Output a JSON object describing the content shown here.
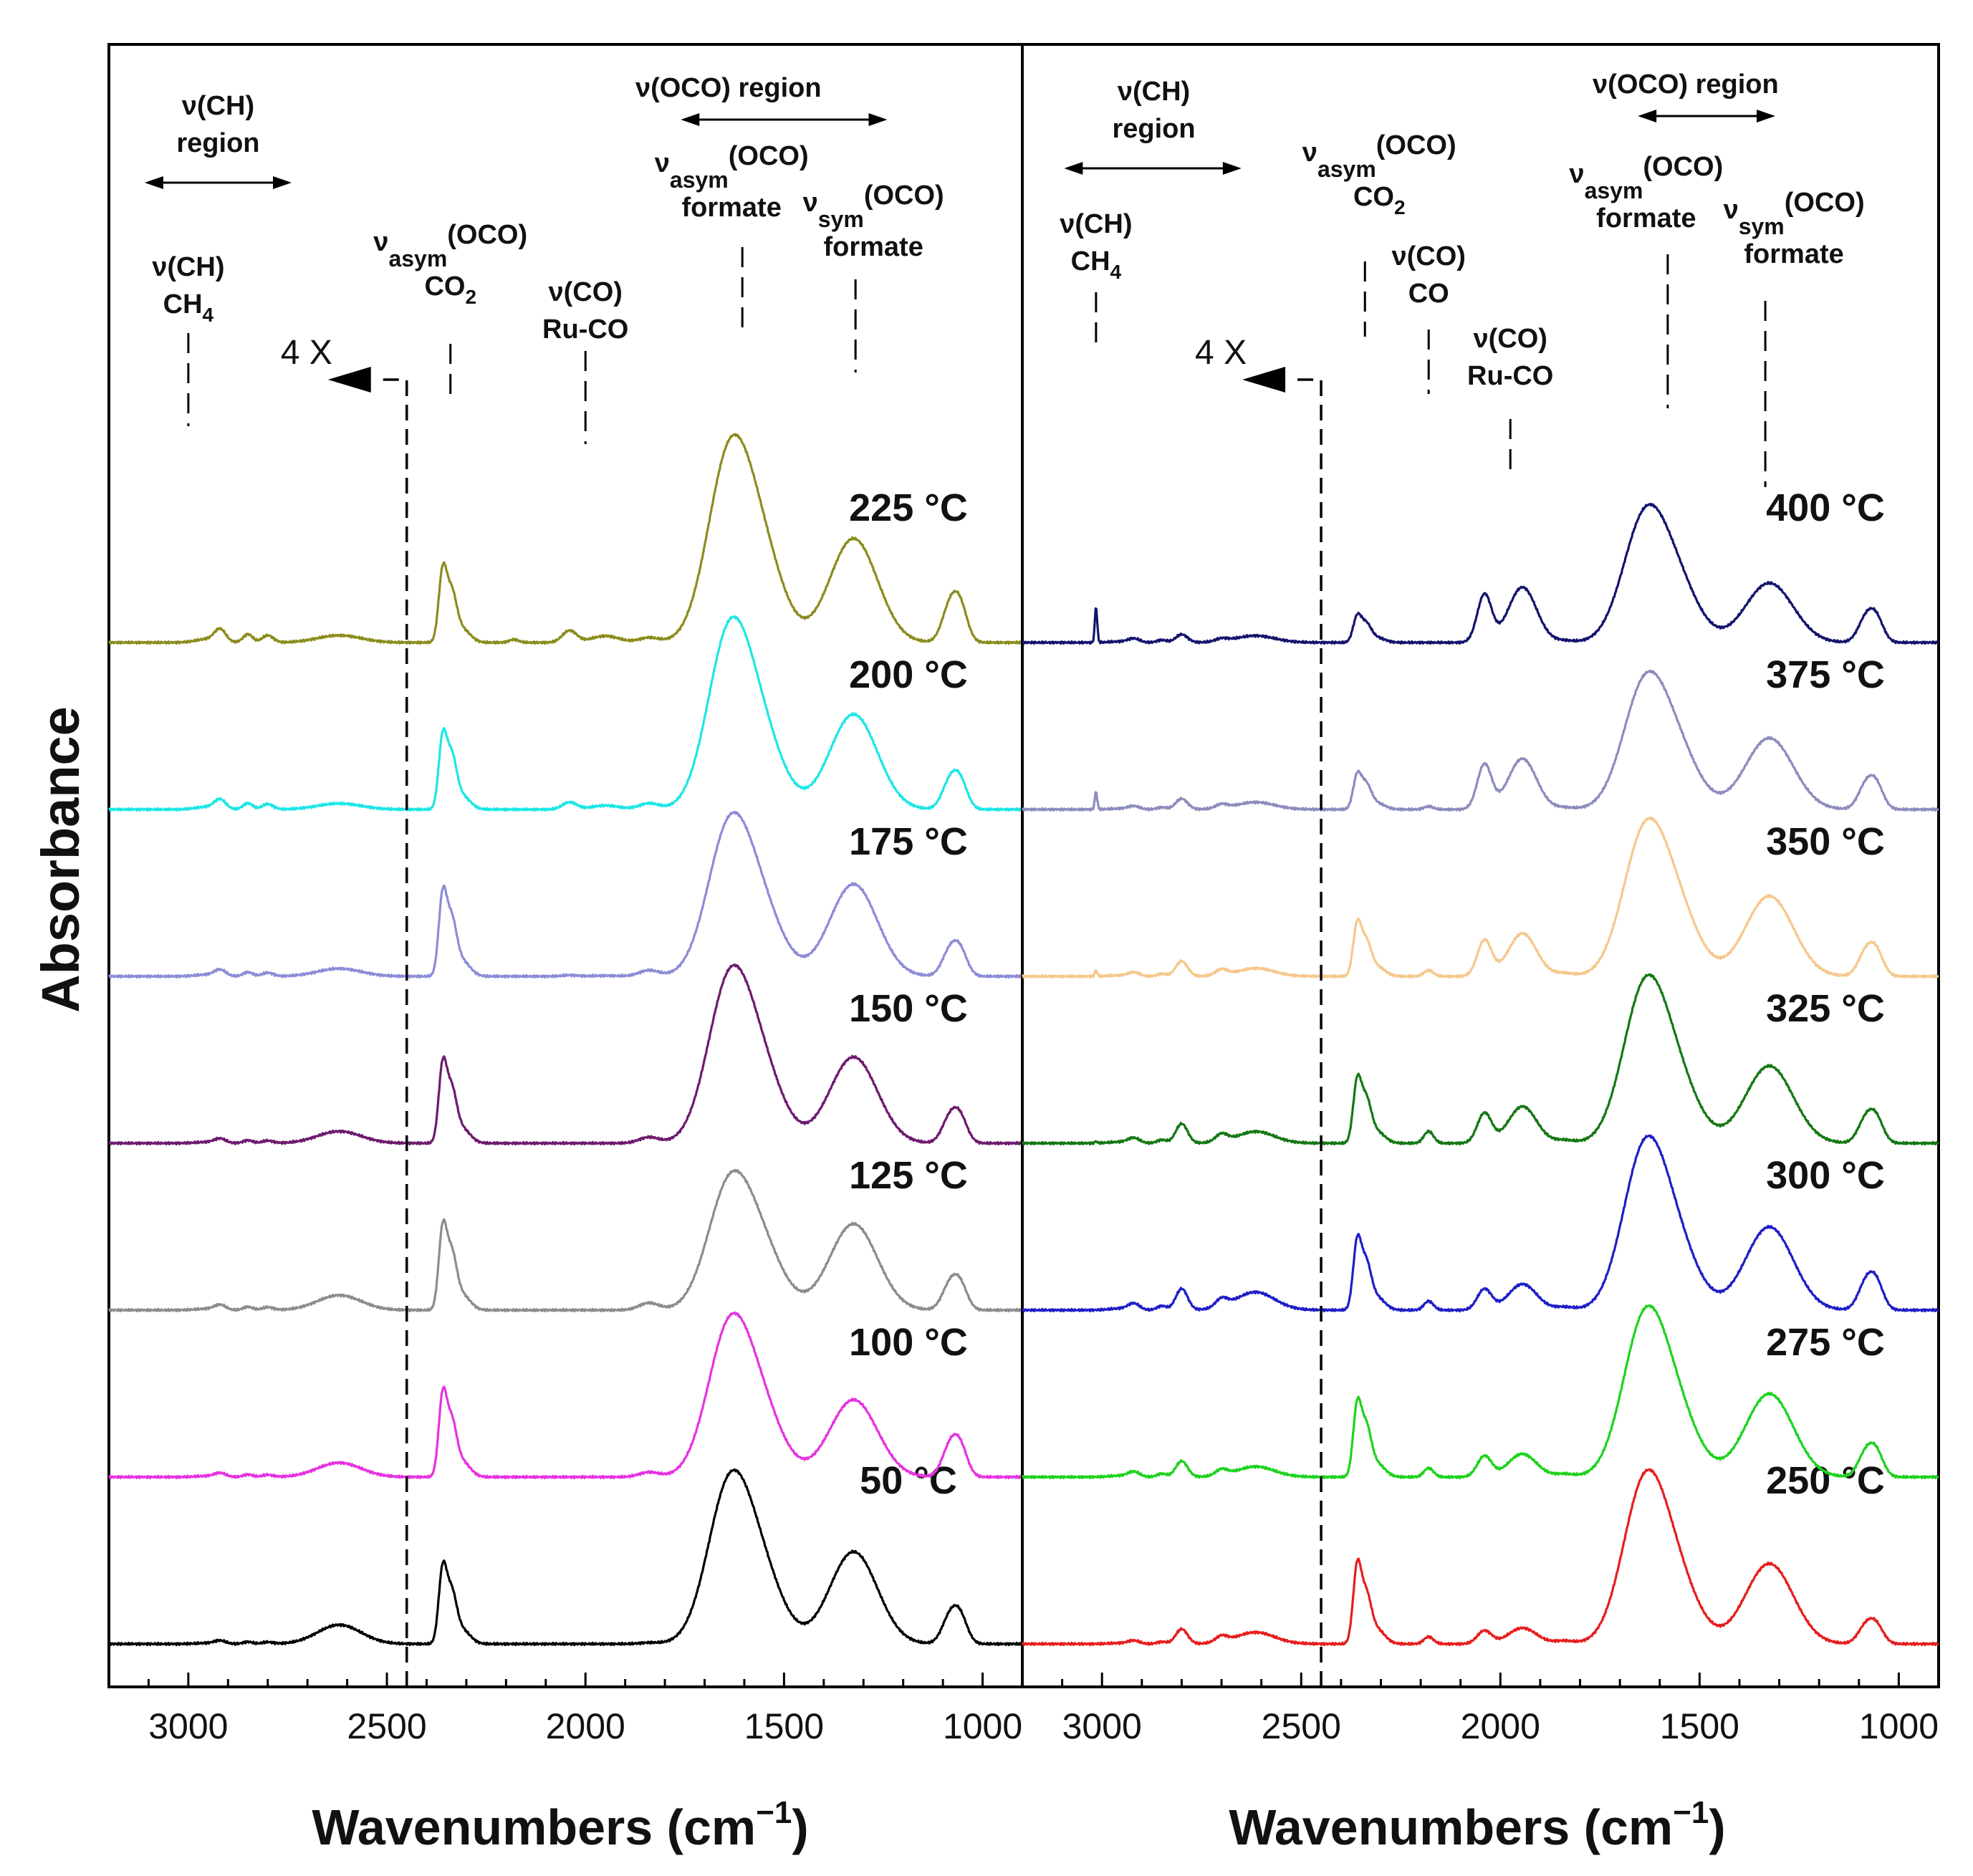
{
  "figure": {
    "ylabel": "Absorbance",
    "xlabel_text": "Wavenumbers (cm",
    "xlabel_sup": "−1",
    "xlabel_close": ")",
    "multiplier_text": "4 X"
  },
  "colors": {
    "50": "#000000",
    "100": "#e632e0",
    "125": "#8c8c8c",
    "150": "#6e1a6e",
    "175": "#8c8cd7",
    "200": "#1ce6e6",
    "225": "#8c8c1e",
    "250": "#e61e1e",
    "275": "#1ed21e",
    "300": "#1e1ec8",
    "325": "#147814",
    "350": "#f5c88c",
    "375": "#8c8cbe",
    "400": "#14146e"
  },
  "chart_data": [
    {
      "type": "line",
      "panel": "left",
      "xlabel": "Wavenumbers (cm−1)",
      "ylabel": "Absorbance",
      "xlim": [
        3200,
        900
      ],
      "xticks": [
        3000,
        2500,
        2000,
        1500,
        1000
      ],
      "xtick_labels": [
        "3000",
        "2500",
        "2000",
        "1500",
        "1000"
      ],
      "x_inverted": true,
      "scale_break_x": 2450,
      "scale_note": "4 X",
      "series": [
        {
          "name": "50",
          "label": "50 °C",
          "offset": 0,
          "peaks": {
            "ch4": 0,
            "ch": 0.05,
            "b2620": 0.32,
            "co2": 1.15,
            "co2b": 0.82,
            "rucoco": 0,
            "ruco": 0,
            "b1840": 0.02,
            "asym": 2.55,
            "asymsh": 1.0,
            "sym": 1.55,
            "b1080": 0.45
          }
        },
        {
          "name": "100",
          "label": "100 °C",
          "offset": 1,
          "peaks": {
            "ch4": 0,
            "ch": 0.06,
            "b2620": 0.24,
            "co2": 1.25,
            "co2b": 0.88,
            "rucoco": 0,
            "ruco": 0,
            "b1840": 0.08,
            "asym": 2.4,
            "asymsh": 0.95,
            "sym": 1.3,
            "b1080": 0.5
          }
        },
        {
          "name": "125",
          "label": "125 °C",
          "offset": 2,
          "peaks": {
            "ch4": 0,
            "ch": 0.08,
            "b2620": 0.25,
            "co2": 1.25,
            "co2b": 0.9,
            "rucoco": 0,
            "ruco": 0,
            "b1840": 0.12,
            "asym": 2.0,
            "asymsh": 0.9,
            "sym": 1.45,
            "b1080": 0.42
          }
        },
        {
          "name": "150",
          "label": "150 °C",
          "offset": 3,
          "peaks": {
            "ch4": 0,
            "ch": 0.07,
            "b2620": 0.2,
            "co2": 1.2,
            "co2b": 0.85,
            "rucoco": 0,
            "ruco": 0,
            "b1840": 0.1,
            "asym": 2.6,
            "asymsh": 1.05,
            "sym": 1.45,
            "b1080": 0.42
          }
        },
        {
          "name": "175",
          "label": "175 °C",
          "offset": 4,
          "peaks": {
            "ch4": 0,
            "ch": 0.1,
            "b2620": 0.13,
            "co2": 1.25,
            "co2b": 0.9,
            "rucoco": 0,
            "ruco": 0.02,
            "b1840": 0.1,
            "asym": 2.4,
            "asymsh": 0.95,
            "sym": 1.55,
            "b1080": 0.42
          }
        },
        {
          "name": "200",
          "label": "200 °C",
          "offset": 5,
          "peaks": {
            "ch4": 0,
            "ch": 0.15,
            "b2620": 0.1,
            "co2": 1.1,
            "co2b": 0.85,
            "rucoco": 0,
            "ruco": 0.12,
            "b1840": 0.1,
            "asym": 2.85,
            "asymsh": 1.05,
            "sym": 1.6,
            "b1080": 0.46
          }
        },
        {
          "name": "225",
          "label": "225 °C",
          "offset": 6,
          "peaks": {
            "ch4": 0,
            "ch": 0.2,
            "b2620": 0.12,
            "co2": 1.1,
            "co2b": 0.8,
            "rucoco": 0.05,
            "ruco": 0.2,
            "b1840": 0.08,
            "asym": 3.0,
            "asymsh": 1.3,
            "sym": 1.75,
            "b1080": 0.6
          }
        }
      ],
      "annotations": [
        {
          "id": "ch-region",
          "text": "ν(CH)",
          "text2": "region"
        },
        {
          "id": "ch4",
          "text": "ν(CH)",
          "text2": "CH",
          "sub2": "4",
          "x": 3000
        },
        {
          "id": "co2",
          "nu_sub": "asym",
          "paren": "(OCO)",
          "text2": "CO",
          "sub2": "2",
          "x": 2340
        },
        {
          "id": "ruco",
          "text": "ν(CO)",
          "text2": "Ru-CO",
          "x": 2000
        },
        {
          "id": "oco-region",
          "text": "ν(OCO) region"
        },
        {
          "id": "asym",
          "nu_sub": "asym",
          "paren": "(OCO)",
          "text2": "formate",
          "x": 1605
        },
        {
          "id": "sym",
          "nu_sub": "sym",
          "paren": "(OCO)",
          "text2": "formate",
          "x": 1320
        }
      ]
    },
    {
      "type": "line",
      "panel": "right",
      "xlabel": "Wavenumbers (cm−1)",
      "ylabel": "Absorbance",
      "xlim": [
        3200,
        900
      ],
      "xticks": [
        3000,
        2500,
        2000,
        1500,
        1000
      ],
      "xtick_labels": [
        "3000",
        "2500",
        "2000",
        "1500",
        "1000"
      ],
      "x_inverted": true,
      "scale_break_x": 2450,
      "scale_note": "4 X",
      "series": [
        {
          "name": "250",
          "label": "250 °C",
          "offset": 0,
          "peaks": {
            "ch4": 0,
            "ch": 0.05,
            "b2620": 0.12,
            "co2": 1.2,
            "co2b": 0.78,
            "rucoco": 0.12,
            "ruco": 0.22,
            "b1840": 0.05,
            "asym": 2.6,
            "asymsh": 0.9,
            "sym": 1.35,
            "b1080": 0.3,
            "b2800": 0.22,
            "b1940": 0.15
          }
        },
        {
          "name": "275",
          "label": "275 °C",
          "offset": 1,
          "peaks": {
            "ch4": 0,
            "ch": 0.08,
            "b2620": 0.1,
            "co2": 1.1,
            "co2b": 0.8,
            "rucoco": 0.15,
            "ruco": 0.35,
            "b1840": 0.05,
            "asym": 2.55,
            "asymsh": 0.9,
            "sym": 1.4,
            "b1080": 0.4,
            "b2800": 0.22,
            "b1940": 0.2
          }
        },
        {
          "name": "300",
          "label": "300 °C",
          "offset": 2,
          "peaks": {
            "ch4": 0,
            "ch": 0.1,
            "b2620": 0.2,
            "co2": 1.05,
            "co2b": 0.75,
            "rucoco": 0.15,
            "ruco": 0.35,
            "b1840": 0.05,
            "asym": 2.6,
            "asymsh": 0.9,
            "sym": 1.4,
            "b1080": 0.45,
            "b2800": 0.3,
            "b1940": 0.25
          }
        },
        {
          "name": "325",
          "label": "325 °C",
          "offset": 3,
          "peaks": {
            "ch4": 0.03,
            "ch": 0.08,
            "b2620": 0.1,
            "co2": 0.95,
            "co2b": 0.7,
            "rucoco": 0.2,
            "ruco": 0.5,
            "b1840": 0.05,
            "asym": 2.5,
            "asymsh": 0.9,
            "sym": 1.3,
            "b1080": 0.4,
            "b2800": 0.28,
            "b1940": 0.35
          }
        },
        {
          "name": "350",
          "label": "350 °C",
          "offset": 4,
          "peaks": {
            "ch4": 0.1,
            "ch": 0.06,
            "b2620": 0.06,
            "co2": 0.8,
            "co2b": 0.55,
            "rucoco": 0.1,
            "ruco": 0.6,
            "b1840": 0.05,
            "asym": 2.3,
            "asymsh": 0.95,
            "sym": 1.35,
            "b1080": 0.4,
            "b2800": 0.22,
            "b1940": 0.4
          }
        },
        {
          "name": "375",
          "label": "375 °C",
          "offset": 5,
          "peaks": {
            "ch4": 0.3,
            "ch": 0.05,
            "b2620": 0.07,
            "co2": 0.52,
            "co2b": 0.4,
            "rucoco": 0.05,
            "ruco": 0.75,
            "b1840": 0.03,
            "asym": 2.0,
            "asymsh": 0.85,
            "sym": 1.2,
            "b1080": 0.4,
            "b2800": 0.15,
            "b1940": 0.45
          }
        },
        {
          "name": "400",
          "label": "400 °C",
          "offset": 6,
          "peaks": {
            "ch4": 0.6,
            "ch": 0.06,
            "b2620": 0.08,
            "co2": 0.4,
            "co2b": 0.3,
            "rucoco": 0,
            "ruco": 0.8,
            "b1840": 0.03,
            "asym": 2.0,
            "asymsh": 0.85,
            "sym": 1.0,
            "b1080": 0.4,
            "b2800": 0.1,
            "b1940": 0.5
          }
        }
      ],
      "annotations": [
        {
          "id": "ch-region",
          "text": "ν(CH)",
          "text2": "region"
        },
        {
          "id": "ch4",
          "text": "ν(CH)",
          "text2": "CH",
          "sub2": "4",
          "x": 3015
        },
        {
          "id": "co2",
          "nu_sub": "asym",
          "paren": "(OCO)",
          "text2": "CO",
          "sub2": "2",
          "x": 2340
        },
        {
          "id": "co",
          "text": "ν(CO)",
          "text2": "CO",
          "x": 2180
        },
        {
          "id": "ruco",
          "text": "ν(CO)",
          "text2": "Ru-CO",
          "x": 1975
        },
        {
          "id": "oco-region",
          "text": "ν(OCO) region"
        },
        {
          "id": "asym",
          "nu_sub": "asym",
          "paren": "(OCO)",
          "text2": "formate",
          "x": 1580
        },
        {
          "id": "sym",
          "nu_sub": "sym",
          "paren": "(OCO)",
          "text2": "formate",
          "x": 1335
        }
      ]
    }
  ]
}
